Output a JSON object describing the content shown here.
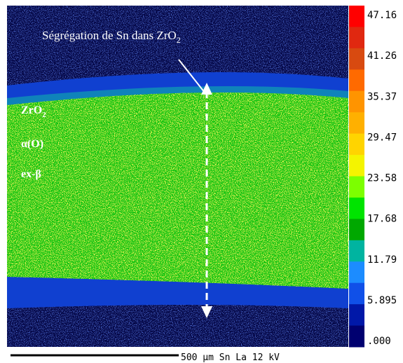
{
  "annotation": {
    "text": "Ségrégation de Sn dans ZrO",
    "subscript": "2"
  },
  "layers": [
    {
      "text": "ZrO",
      "subscript": "2"
    },
    {
      "text": "α(O)"
    },
    {
      "text": "ex-β"
    }
  ],
  "colorbar": {
    "ticks": [
      47.16,
      41.26,
      35.37,
      29.47,
      23.58,
      17.68,
      11.79,
      5.895,
      {
        "value": 0,
        "label": ".000"
      }
    ],
    "colors": [
      "#ff0000",
      "#e02810",
      "#d84a10",
      "#ff6a00",
      "#ff9400",
      "#ffb000",
      "#ffd400",
      "#f4f400",
      "#7cff00",
      "#00e400",
      "#00a800",
      "#00b4a0",
      "#1c8cff",
      "#1050e8",
      "#0018a8",
      "#000070"
    ]
  },
  "footer": "500 µm  Sn La  12 kV"
}
